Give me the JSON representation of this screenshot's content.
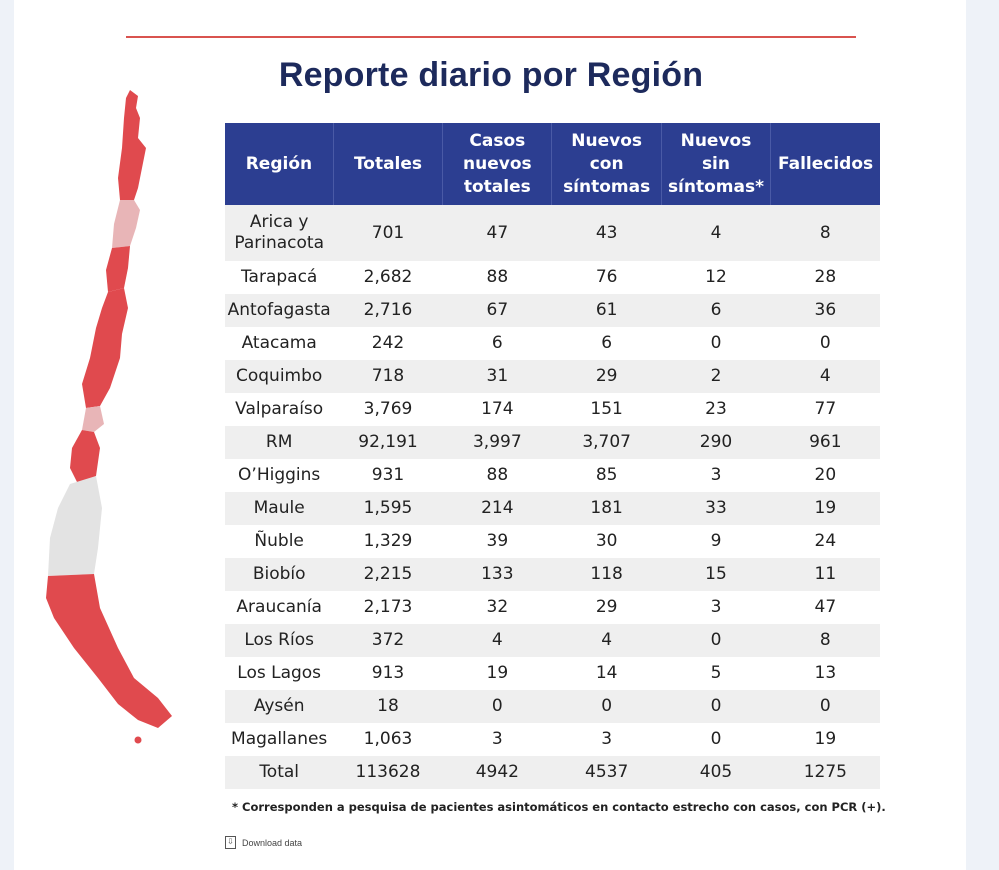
{
  "title": "Reporte diario por Región",
  "colors": {
    "header_bg": "#2c3e91",
    "accent_red": "#d9534f",
    "map_red": "#e04a4e",
    "map_pink": "#e8b5b7",
    "map_gray": "#e3e3e3"
  },
  "table": {
    "headers": [
      "Región",
      "Totales",
      "Casos nuevos totales",
      "Nuevos con síntomas",
      "Nuevos sin síntomas*",
      "Fallecidos"
    ],
    "rows": [
      [
        "Arica y Parinacota",
        "701",
        "47",
        "43",
        "4",
        "8"
      ],
      [
        "Tarapacá",
        "2,682",
        "88",
        "76",
        "12",
        "28"
      ],
      [
        "Antofagasta",
        "2,716",
        "67",
        "61",
        "6",
        "36"
      ],
      [
        "Atacama",
        "242",
        "6",
        "6",
        "0",
        "0"
      ],
      [
        "Coquimbo",
        "718",
        "31",
        "29",
        "2",
        "4"
      ],
      [
        "Valparaíso",
        "3,769",
        "174",
        "151",
        "23",
        "77"
      ],
      [
        "RM",
        "92,191",
        "3,997",
        "3,707",
        "290",
        "961"
      ],
      [
        "O’Higgins",
        "931",
        "88",
        "85",
        "3",
        "20"
      ],
      [
        "Maule",
        "1,595",
        "214",
        "181",
        "33",
        "19"
      ],
      [
        "Ñuble",
        "1,329",
        "39",
        "30",
        "9",
        "24"
      ],
      [
        "Biobío",
        "2,215",
        "133",
        "118",
        "15",
        "11"
      ],
      [
        "Araucanía",
        "2,173",
        "32",
        "29",
        "3",
        "47"
      ],
      [
        "Los Ríos",
        "372",
        "4",
        "4",
        "0",
        "8"
      ],
      [
        "Los Lagos",
        "913",
        "19",
        "14",
        "5",
        "13"
      ],
      [
        "Aysén",
        "18",
        "0",
        "0",
        "0",
        "0"
      ],
      [
        "Magallanes",
        "1,063",
        "3",
        "3",
        "0",
        "19"
      ]
    ],
    "total": [
      "Total",
      "113628",
      "4942",
      "4537",
      "405",
      "1275"
    ]
  },
  "footnote": "* Corresponden a pesquisa de pacientes asintomáticos en contacto estrecho con casos, con PCR (+).",
  "download": {
    "label": "Download data",
    "icon": "download-icon"
  }
}
